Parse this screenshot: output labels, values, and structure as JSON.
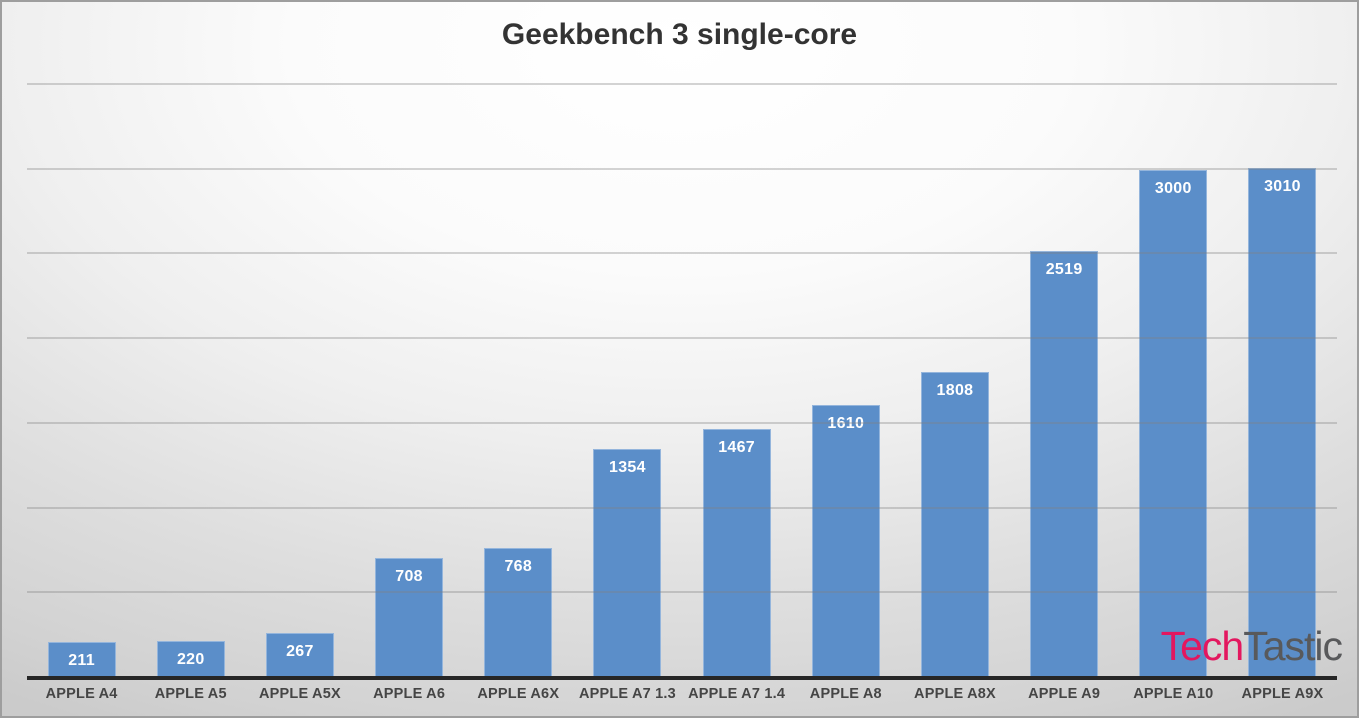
{
  "page": {
    "title": "Geekbench 3 single-core"
  },
  "watermark": {
    "part1": "Tech",
    "part2": "Tastic"
  },
  "colors": {
    "bar": "#5b8ec9",
    "bar_value_label": "#ffffff",
    "title_text": "#333333",
    "axis_label_text": "#454545",
    "axis_line": "#262626",
    "gridline": "#7f7f7f",
    "logo_tech": "#e3175f",
    "logo_tastic": "#58595b",
    "background_edge": "#cbcbcb",
    "background_center": "#ffffff"
  },
  "chart_data": {
    "type": "bar",
    "title": "Geekbench 3 single-core",
    "categories": [
      "APPLE A4",
      "APPLE A5",
      "APPLE A5X",
      "APPLE A6",
      "APPLE A6X",
      "APPLE A7 1.3",
      "APPLE A7 1.4",
      "APPLE A8",
      "APPLE A8X",
      "APPLE A9",
      "APPLE A10",
      "APPLE A9X"
    ],
    "values": [
      211,
      220,
      267,
      708,
      768,
      1354,
      1467,
      1610,
      1808,
      2519,
      3000,
      3010
    ],
    "xlabel": "",
    "ylabel": "",
    "ylim": [
      0,
      3500
    ],
    "gridline_step": 500,
    "grid": true,
    "legend": "none",
    "data_labels": "inside-end",
    "bar_color": "#5b8ec9"
  }
}
